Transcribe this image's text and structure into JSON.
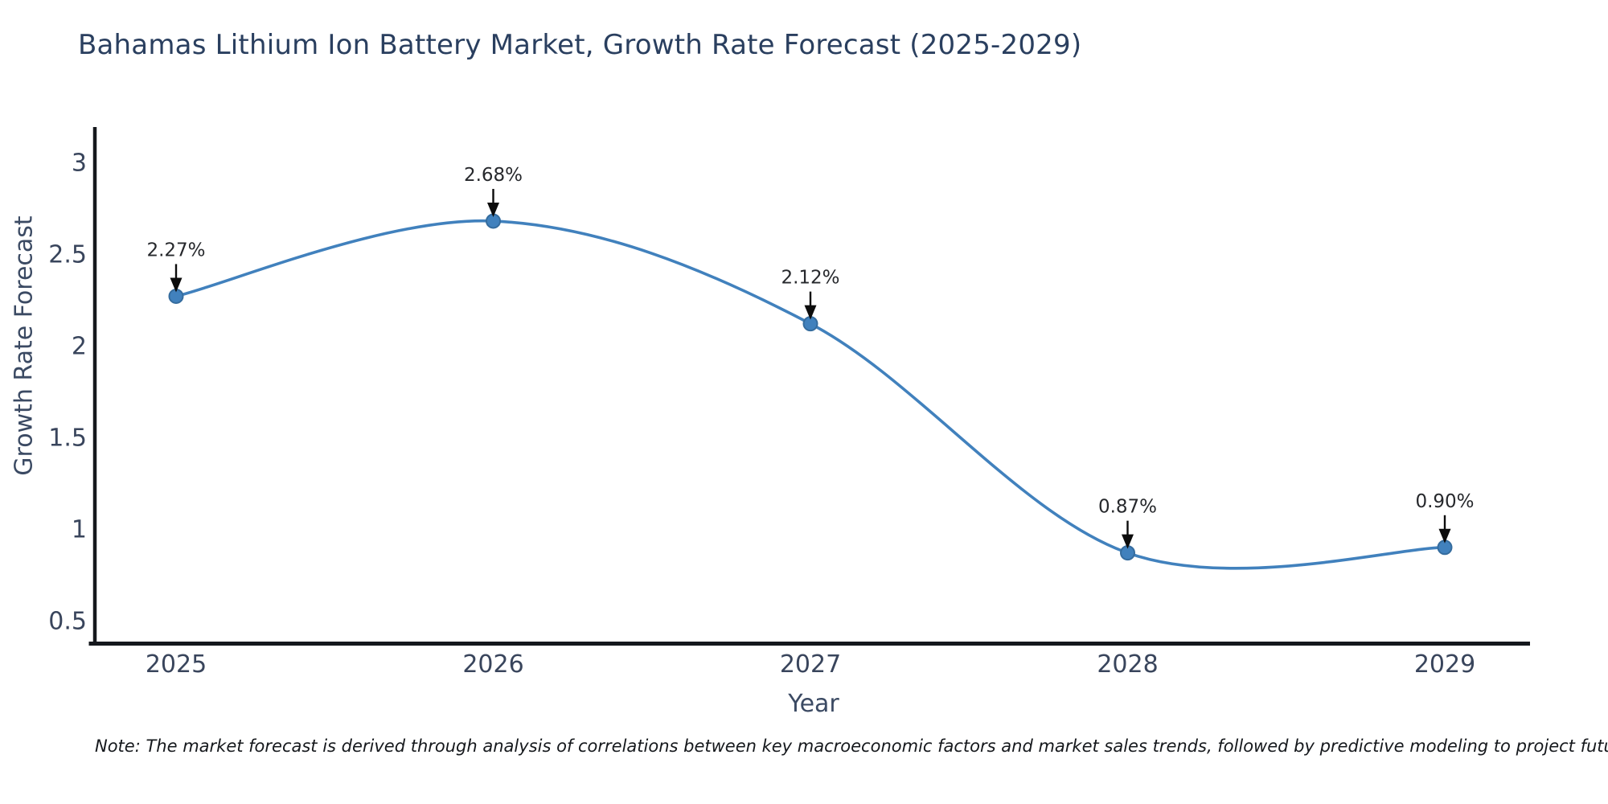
{
  "chart_data": {
    "type": "line",
    "title": "Bahamas Lithium Ion Battery Market, Growth Rate Forecast (2025-2029)",
    "xlabel": "Year",
    "ylabel": "Growth Rate Forecast",
    "x": [
      2025,
      2026,
      2027,
      2028,
      2029
    ],
    "categories": [
      "2025",
      "2026",
      "2027",
      "2028",
      "2029"
    ],
    "values": [
      2.27,
      2.68,
      2.12,
      0.87,
      0.9
    ],
    "point_labels": [
      "2.27%",
      "2.68%",
      "2.12%",
      "0.87%",
      "0.90%"
    ],
    "yticks": [
      3,
      2.5,
      2,
      1.5,
      1,
      0.5
    ],
    "ylim": [
      0.37,
      3.22
    ],
    "xlim": [
      2024.72,
      2029.27
    ],
    "grid": false,
    "legend": "none",
    "curve": "spline",
    "marker": "circle",
    "annotation_style": "value label with downward arrow above each point",
    "colors": {
      "line": "#4181bd",
      "marker": "#4181bd",
      "marker_edge": "#356c9e",
      "axis": "#15181d",
      "tick_label": "#39455c",
      "axis_title": "#3b4a63",
      "title": "#2a3f5f",
      "annotation_text": "#26282c",
      "arrow": "#0c0c0c",
      "background": "#ffffff"
    }
  },
  "note": "Note: The market forecast is derived through analysis of correlations between key macroeconomic factors and market sales trends, followed by predictive modeling to project future sales"
}
